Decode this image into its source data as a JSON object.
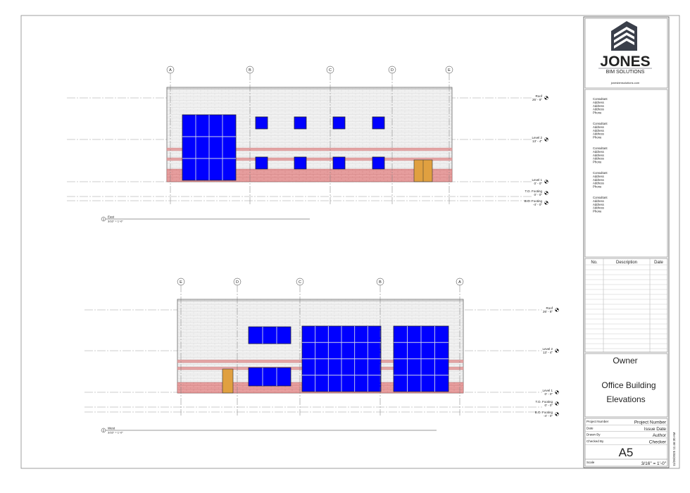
{
  "views": [
    {
      "number": "1",
      "name": "East",
      "scale": "3/16\" = 1'-0\"",
      "grids": [
        "A",
        "B",
        "C",
        "D",
        "E"
      ],
      "levels": [
        {
          "name": "Roof",
          "elevation": "26' - 8\""
        },
        {
          "name": "Level 2",
          "elevation": "13' - 4\""
        },
        {
          "name": "Level 1",
          "elevation": "0' - 0\""
        },
        {
          "name": "T.O. Footing",
          "elevation": "0' - 0\""
        },
        {
          "name": "B.O. Footing",
          "elevation": "-4' - 0\""
        }
      ]
    },
    {
      "number": "2",
      "name": "West",
      "scale": "3/16\" = 1'-0\"",
      "grids": [
        "E",
        "D",
        "C",
        "B",
        "A"
      ],
      "levels": [
        {
          "name": "Roof",
          "elevation": "26' - 8\""
        },
        {
          "name": "Level 2",
          "elevation": "13' - 4\""
        },
        {
          "name": "Level 1",
          "elevation": "0' - 0\""
        },
        {
          "name": "T.O. Footing",
          "elevation": "0' - 0\""
        },
        {
          "name": "B.O. Footing",
          "elevation": "-4' - 0\""
        }
      ]
    }
  ],
  "title_block": {
    "logo": {
      "name": "JONES",
      "tagline": "BIM SOLUTIONS"
    },
    "website": "jonesbimsolutions.com",
    "consultants": [
      [
        "Consultant",
        "Address",
        "Address",
        "Address",
        "Phone"
      ],
      [
        "Consultant",
        "Address",
        "Address",
        "Address",
        "Phone"
      ],
      [
        "Consultant",
        "Address",
        "Address",
        "Address",
        "Phone"
      ],
      [
        "Consultant",
        "Address",
        "Address",
        "Address",
        "Phone"
      ],
      [
        "Consultant",
        "Address",
        "Address",
        "Address",
        "Phone"
      ]
    ],
    "revisions": {
      "headers": [
        "No.",
        "Description",
        "Date"
      ]
    },
    "owner": "Owner",
    "project_name": "Office Building",
    "sheet_name": "Elevations",
    "fields": [
      {
        "label": "Project Number",
        "value": "Project Number"
      },
      {
        "label": "Date",
        "value": "Issue Date"
      },
      {
        "label": "Drawn By",
        "value": "Author"
      },
      {
        "label": "Checked By",
        "value": "Checker"
      }
    ],
    "sheet_number": "A5",
    "scale": {
      "label": "Scale",
      "value": "3/16\" = 1'-0\""
    },
    "timestamp": "11/26/2025 11:46:30 AM"
  }
}
